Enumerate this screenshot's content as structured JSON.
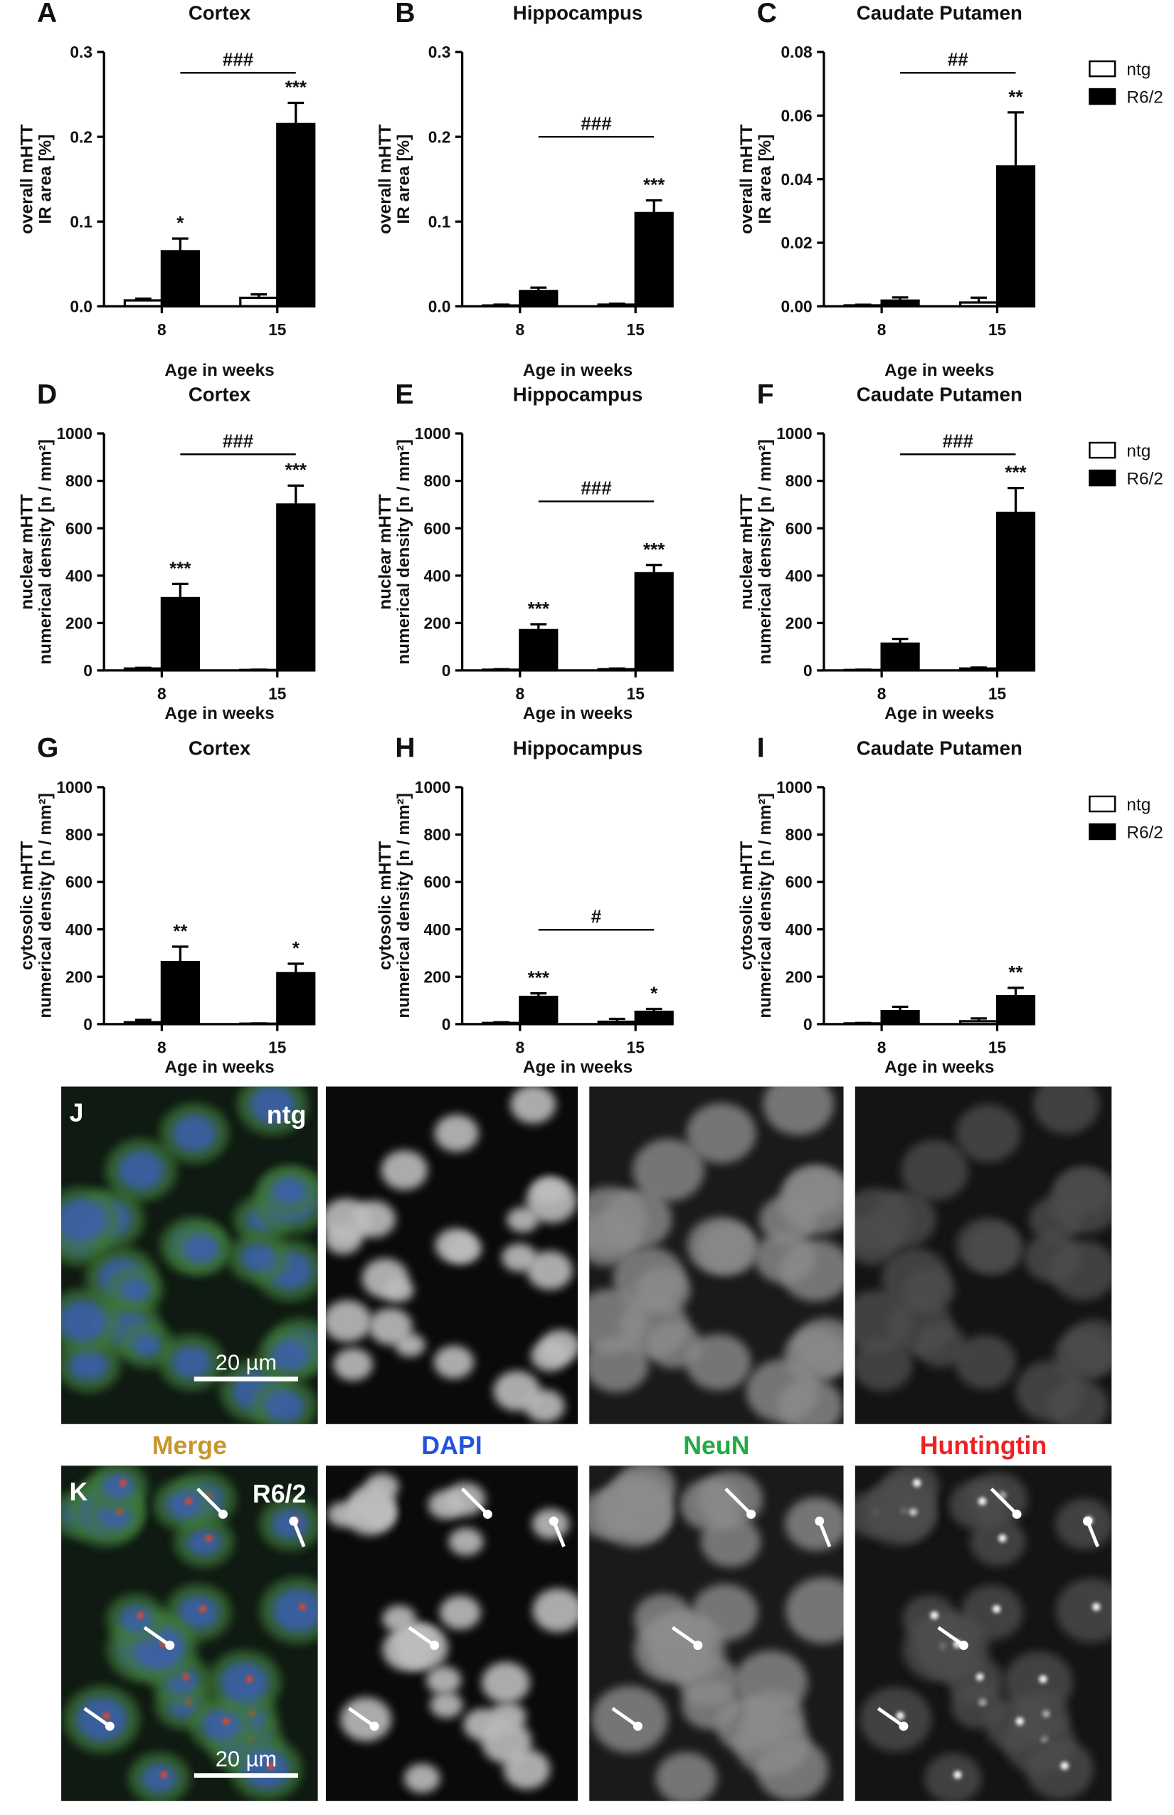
{
  "chart_data": [
    {
      "type": "bar",
      "panel": "A",
      "title": "Cortex",
      "ylabel": [
        "overall mHTT",
        "IR area [%]"
      ],
      "xlabel": "Age in weeks",
      "categories": [
        "8",
        "15"
      ],
      "series": [
        {
          "name": "ntg",
          "color": "#ffffff",
          "values": [
            0.007,
            0.01
          ],
          "errors": [
            0.002,
            0.004
          ],
          "significance": [
            null,
            null
          ]
        },
        {
          "name": "R6/2",
          "color": "#000000",
          "values": [
            0.065,
            0.215
          ],
          "errors": [
            0.015,
            0.025
          ],
          "significance": [
            "*",
            "***"
          ]
        }
      ],
      "bracket_label": "###",
      "ylim": [
        0,
        0.3
      ],
      "yticks": [
        {
          "value": 0,
          "label": "0.0"
        },
        0.1,
        0.2,
        0.3
      ],
      "legend": false
    },
    {
      "type": "bar",
      "panel": "B",
      "title": "Hippocampus",
      "ylabel": [
        "overall mHTT",
        "IR area [%]"
      ],
      "xlabel": "Age in weeks",
      "categories": [
        "8",
        "15"
      ],
      "series": [
        {
          "name": "ntg",
          "color": "#ffffff",
          "values": [
            0.001,
            0.002
          ],
          "errors": [
            0.001,
            0.001
          ],
          "significance": [
            null,
            null
          ]
        },
        {
          "name": "R6/2",
          "color": "#000000",
          "values": [
            0.018,
            0.11
          ],
          "errors": [
            0.004,
            0.015
          ],
          "significance": [
            null,
            "***"
          ]
        }
      ],
      "bracket_label": "###",
      "ylim": [
        0,
        0.3
      ],
      "yticks": [
        {
          "value": 0,
          "label": "0.0"
        },
        0.1,
        0.2,
        0.3
      ],
      "legend": false
    },
    {
      "type": "bar",
      "panel": "C",
      "title": "Caudate Putamen",
      "ylabel": [
        "overall mHTT",
        "IR area [%]"
      ],
      "xlabel": "Age in weeks",
      "categories": [
        "8",
        "15"
      ],
      "series": [
        {
          "name": "ntg",
          "color": "#ffffff",
          "values": [
            0.0003,
            0.0012
          ],
          "errors": [
            0.0002,
            0.0015
          ],
          "significance": [
            null,
            null
          ]
        },
        {
          "name": "R6/2",
          "color": "#000000",
          "values": [
            0.0018,
            0.044
          ],
          "errors": [
            0.001,
            0.017
          ],
          "significance": [
            null,
            "**"
          ]
        }
      ],
      "bracket_label": "##",
      "ylim": [
        0,
        0.08
      ],
      "yticks": [
        {
          "value": 0,
          "label": "0.00"
        },
        {
          "value": 0.02,
          "label": "0.02"
        },
        {
          "value": 0.04,
          "label": "0.04"
        },
        {
          "value": 0.06,
          "label": "0.06"
        },
        {
          "value": 0.08,
          "label": "0.08"
        }
      ],
      "legend": true
    },
    {
      "type": "bar",
      "panel": "D",
      "title": "Cortex",
      "ylabel": [
        "nuclear mHTT",
        "numerical density [n / mm²]"
      ],
      "xlabel": "Age in weeks",
      "categories": [
        "8",
        "15"
      ],
      "series": [
        {
          "name": "ntg",
          "color": "#ffffff",
          "values": [
            8,
            2
          ],
          "errors": [
            3,
            1
          ],
          "significance": [
            null,
            null
          ]
        },
        {
          "name": "R6/2",
          "color": "#000000",
          "values": [
            305,
            700
          ],
          "errors": [
            60,
            80
          ],
          "significance": [
            "***",
            "***"
          ]
        }
      ],
      "bracket_label": "###",
      "ylim": [
        0,
        1000
      ],
      "yticks": [
        0,
        200,
        400,
        600,
        800,
        1000
      ],
      "legend": false
    },
    {
      "type": "bar",
      "panel": "E",
      "title": "Hippocampus",
      "ylabel": [
        "nuclear mHTT",
        "numerical density [n / mm²]"
      ],
      "xlabel": "Age in weeks",
      "categories": [
        "8",
        "15"
      ],
      "series": [
        {
          "name": "ntg",
          "color": "#ffffff",
          "values": [
            3,
            5
          ],
          "errors": [
            2,
            3
          ],
          "significance": [
            null,
            null
          ]
        },
        {
          "name": "R6/2",
          "color": "#000000",
          "values": [
            170,
            410
          ],
          "errors": [
            25,
            35
          ],
          "significance": [
            "***",
            "***"
          ]
        }
      ],
      "bracket_label": "###",
      "ylim": [
        0,
        1000
      ],
      "yticks": [
        0,
        200,
        400,
        600,
        800,
        1000
      ],
      "legend": false
    },
    {
      "type": "bar",
      "panel": "F",
      "title": "Caudate Putamen",
      "ylabel": [
        "nuclear mHTT",
        "numerical density [n / mm²]"
      ],
      "xlabel": "Age in weeks",
      "categories": [
        "8",
        "15"
      ],
      "series": [
        {
          "name": "ntg",
          "color": "#ffffff",
          "values": [
            2,
            8
          ],
          "errors": [
            1,
            4
          ],
          "significance": [
            null,
            null
          ]
        },
        {
          "name": "R6/2",
          "color": "#000000",
          "values": [
            113,
            665
          ],
          "errors": [
            20,
            105
          ],
          "significance": [
            null,
            "***"
          ]
        }
      ],
      "bracket_label": "###",
      "ylim": [
        0,
        1000
      ],
      "yticks": [
        0,
        200,
        400,
        600,
        800,
        1000
      ],
      "legend": true
    },
    {
      "type": "bar",
      "panel": "G",
      "title": "Cortex",
      "ylabel": [
        "cytosolic mHTT",
        "numerical density [n / mm²]"
      ],
      "xlabel": "Age in weeks",
      "categories": [
        "8",
        "15"
      ],
      "series": [
        {
          "name": "ntg",
          "color": "#ffffff",
          "values": [
            8,
            2
          ],
          "errors": [
            10,
            1
          ],
          "significance": [
            null,
            null
          ]
        },
        {
          "name": "R6/2",
          "color": "#000000",
          "values": [
            262,
            215
          ],
          "errors": [
            65,
            40
          ],
          "significance": [
            "**",
            "*"
          ]
        }
      ],
      "ylim": [
        0,
        1000
      ],
      "yticks": [
        0,
        200,
        400,
        600,
        800,
        1000
      ],
      "legend": false
    },
    {
      "type": "bar",
      "panel": "H",
      "title": "Hippocampus",
      "ylabel": [
        "cytosolic mHTT",
        "numerical density [n / mm²]"
      ],
      "xlabel": "Age in weeks",
      "categories": [
        "8",
        "15"
      ],
      "series": [
        {
          "name": "ntg",
          "color": "#ffffff",
          "values": [
            5,
            10
          ],
          "errors": [
            3,
            12
          ],
          "significance": [
            null,
            null
          ]
        },
        {
          "name": "R6/2",
          "color": "#000000",
          "values": [
            115,
            52
          ],
          "errors": [
            15,
            12
          ],
          "significance": [
            "***",
            "*"
          ]
        }
      ],
      "bracket_label": "#",
      "ylim": [
        0,
        1000
      ],
      "yticks": [
        0,
        200,
        400,
        600,
        800,
        1000
      ],
      "legend": false
    },
    {
      "type": "bar",
      "panel": "I",
      "title": "Caudate Putamen",
      "ylabel": [
        "cytosolic mHTT",
        "numerical density [n / mm²]"
      ],
      "xlabel": "Age in weeks",
      "categories": [
        "8",
        "15"
      ],
      "series": [
        {
          "name": "ntg",
          "color": "#ffffff",
          "values": [
            3,
            12
          ],
          "errors": [
            2,
            12
          ],
          "significance": [
            null,
            null
          ]
        },
        {
          "name": "R6/2",
          "color": "#000000",
          "values": [
            55,
            118
          ],
          "errors": [
            18,
            35
          ],
          "significance": [
            null,
            "**"
          ]
        }
      ],
      "ylim": [
        0,
        1000
      ],
      "yticks": [
        0,
        200,
        400,
        600,
        800,
        1000
      ],
      "legend": true
    }
  ],
  "micrographs": {
    "columns": [
      "Merge",
      "DAPI",
      "NeuN",
      "Huntingtin"
    ],
    "column_colors": [
      "#c8962a",
      "#2255dd",
      "#22aa44",
      "#ee2222"
    ],
    "panels": [
      {
        "label": "J",
        "group": "ntg",
        "scale_bar": "20 µm"
      },
      {
        "label": "K",
        "group": "R6/2",
        "scale_bar": "20 µm"
      }
    ]
  }
}
